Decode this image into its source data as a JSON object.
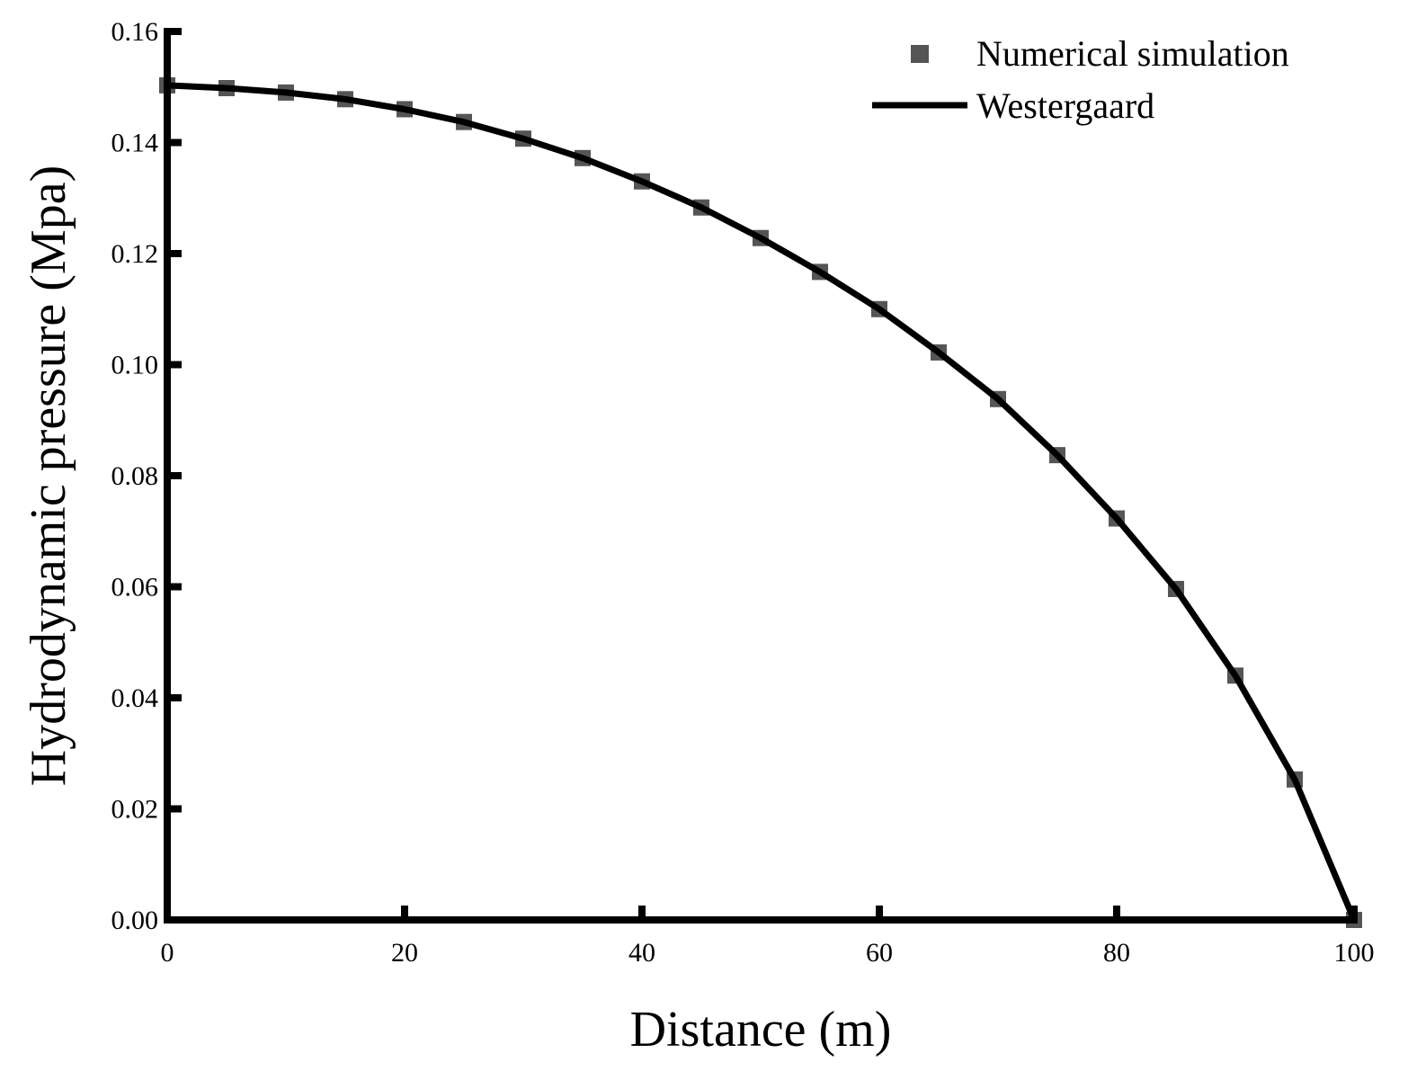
{
  "chart_data": {
    "type": "scatter+line",
    "title": "",
    "xlabel": "Distance (m)",
    "ylabel": "Hydrodynamic pressure (Mpa)",
    "xlim": [
      0,
      100
    ],
    "ylim": [
      0,
      0.16
    ],
    "xticks": [
      "0",
      "20",
      "40",
      "60",
      "80",
      "100"
    ],
    "yticks": [
      "0.00",
      "0.02",
      "0.04",
      "0.06",
      "0.08",
      "0.10",
      "0.12",
      "0.14",
      "0.16"
    ],
    "grid": false,
    "legend_position": "top-right",
    "series": [
      {
        "name": "Numerical simulation",
        "kind": "scatter",
        "marker": "square",
        "color": "#555555",
        "x": [
          0,
          5,
          10,
          15,
          20,
          25,
          30,
          35,
          40,
          45,
          50,
          55,
          60,
          65,
          70,
          75,
          80,
          85,
          90,
          95,
          100
        ],
        "y": [
          0.1503,
          0.1498,
          0.149,
          0.1478,
          0.146,
          0.1437,
          0.1407,
          0.1372,
          0.133,
          0.1283,
          0.1228,
          0.1167,
          0.11,
          0.1022,
          0.0938,
          0.0837,
          0.0723,
          0.0596,
          0.044,
          0.0253,
          0.0
        ]
      },
      {
        "name": "Westergaard",
        "kind": "line",
        "color": "#000000",
        "x": [
          0,
          5,
          10,
          15,
          20,
          25,
          30,
          35,
          40,
          45,
          50,
          55,
          60,
          65,
          70,
          75,
          80,
          85,
          90,
          95,
          100
        ],
        "y": [
          0.1503,
          0.1498,
          0.149,
          0.1478,
          0.146,
          0.1437,
          0.1407,
          0.1372,
          0.133,
          0.1283,
          0.1228,
          0.1167,
          0.11,
          0.1022,
          0.0938,
          0.0837,
          0.0723,
          0.0596,
          0.044,
          0.0253,
          0.0
        ]
      }
    ]
  }
}
